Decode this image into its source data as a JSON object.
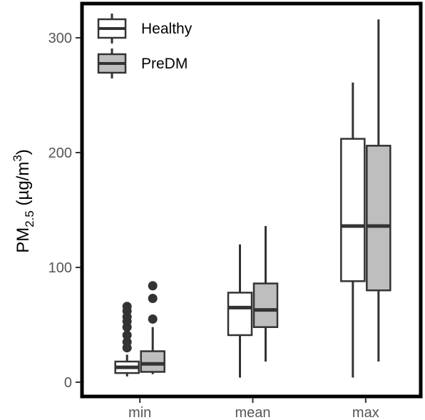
{
  "chart_data": {
    "type": "boxplot",
    "title": "",
    "ylabel": {
      "main": "PM",
      "sub": "2.5",
      "unit": "(µg/m",
      "sup": "3",
      "close": ")"
    },
    "xlabel": "",
    "ylim": [
      -10,
      325
    ],
    "yticks": [
      0,
      100,
      200,
      300
    ],
    "categories": [
      "min",
      "mean",
      "max"
    ],
    "grid": false,
    "legend_position": "top-left",
    "series": [
      {
        "name": "Healthy",
        "color": "#ffffff",
        "boxes": [
          {
            "category": "min",
            "whisker_low": 5,
            "q1": 8,
            "median": 13,
            "q3": 18,
            "whisker_high": 24,
            "outliers": [
              30,
              35,
              41,
              48,
              53,
              57,
              62,
              66
            ]
          },
          {
            "category": "mean",
            "whisker_low": 4,
            "q1": 41,
            "median": 65,
            "q3": 78,
            "whisker_high": 120,
            "outliers": []
          },
          {
            "category": "max",
            "whisker_low": 4,
            "q1": 88,
            "median": 136,
            "q3": 212,
            "whisker_high": 261,
            "outliers": []
          }
        ]
      },
      {
        "name": "PreDM",
        "color": "#bebebe",
        "boxes": [
          {
            "category": "min",
            "whisker_low": 7,
            "q1": 9,
            "median": 16,
            "q3": 27,
            "whisker_high": 48,
            "outliers": [
              55,
              73,
              84
            ]
          },
          {
            "category": "mean",
            "whisker_low": 18,
            "q1": 48,
            "median": 63,
            "q3": 86,
            "whisker_high": 136,
            "outliers": []
          },
          {
            "category": "max",
            "whisker_low": 18,
            "q1": 80,
            "median": 136,
            "q3": 206,
            "whisker_high": 316,
            "outliers": []
          }
        ]
      }
    ]
  }
}
